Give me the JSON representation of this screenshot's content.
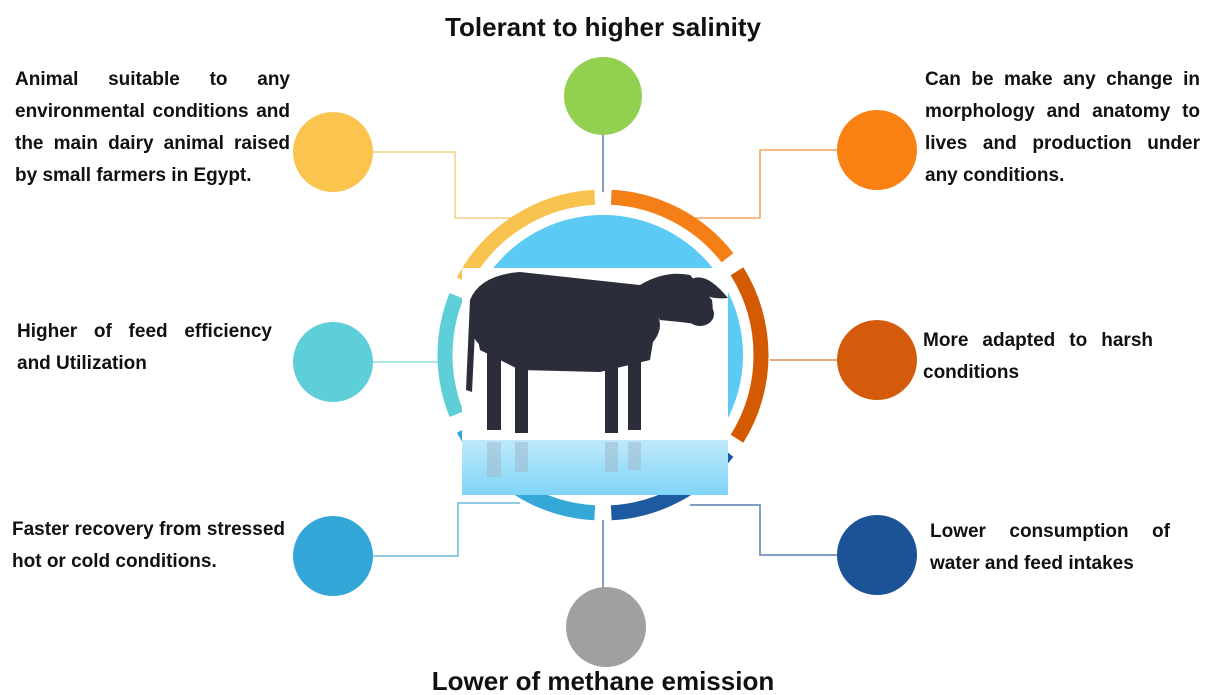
{
  "title_top": "Tolerant to higher salinity",
  "title_bottom": "Lower of methane emission",
  "nodes": [
    {
      "label": "Animal suitable to any environmental conditions and the main dairy animal raised by small farmers in Egypt."
    },
    {
      "label": "Can be make any change in morphology and anatomy to lives and production under any conditions."
    },
    {
      "label": "Higher of feed efficiency and Utilization"
    },
    {
      "label": "More adapted to harsh conditions"
    },
    {
      "label": "Faster recovery from stressed hot or cold conditions."
    },
    {
      "label": "Lower consumption of water and feed intakes"
    }
  ]
}
